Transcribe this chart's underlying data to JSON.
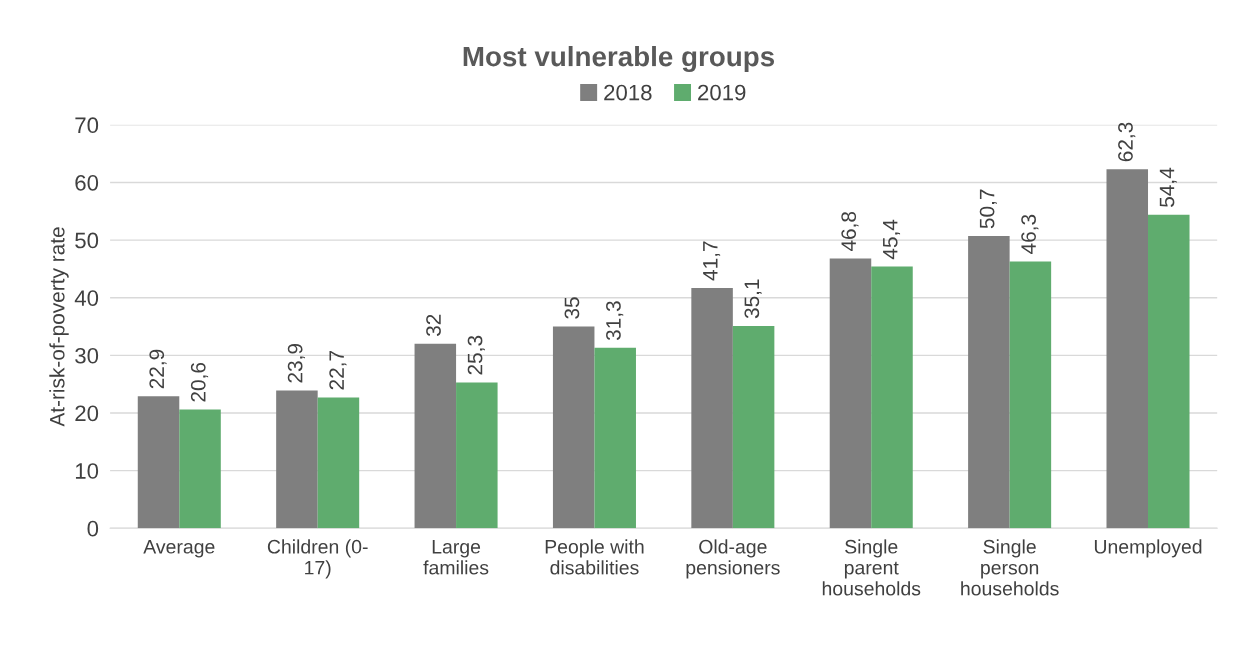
{
  "chart_data": {
    "type": "bar",
    "title": "Most vulnerable groups",
    "ylabel": "At-risk-of-poverty rate",
    "categories": [
      "Average",
      "Children (0-\n17)",
      "Large\nfamilies",
      "People with\ndisabilities",
      "Old-age\npensioners",
      "Single\nparent\nhouseholds",
      "Single\nperson\nhouseholds",
      "Unemployed"
    ],
    "series": [
      {
        "name": "2018",
        "color": "#7f7f7f",
        "values": [
          22.9,
          23.9,
          32,
          35,
          41.7,
          46.8,
          50.7,
          62.3
        ],
        "value_labels": [
          "22,9",
          "23,9",
          "32",
          "35",
          "41,7",
          "46,8",
          "50,7",
          "62,3"
        ]
      },
      {
        "name": "2019",
        "color": "#5fac6e",
        "values": [
          20.6,
          22.7,
          25.3,
          31.3,
          35.1,
          45.4,
          46.3,
          54.4
        ],
        "value_labels": [
          "20,6",
          "22,7",
          "25,3",
          "31,3",
          "35,1",
          "45,4",
          "46,3",
          "54,4"
        ]
      }
    ],
    "ylim": [
      0,
      70
    ],
    "yticks": [
      0,
      10,
      20,
      30,
      40,
      50,
      60,
      70
    ],
    "grid": "y",
    "legend": "top"
  }
}
